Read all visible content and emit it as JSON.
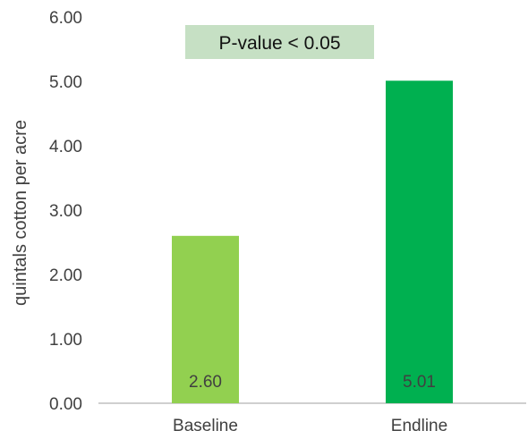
{
  "chart_data": {
    "type": "bar",
    "categories": [
      "Baseline",
      "Endline"
    ],
    "values": [
      2.6,
      5.01
    ],
    "value_labels": [
      "2.60",
      "5.01"
    ],
    "title": "",
    "xlabel": "",
    "ylabel": "quintals cotton per acre",
    "ylim": [
      0,
      6
    ],
    "y_ticks": [
      "0.00",
      "1.00",
      "2.00",
      "3.00",
      "4.00",
      "5.00",
      "6.00"
    ],
    "grid": false,
    "legend": "none",
    "bar_colors": [
      "#92d050",
      "#00b050"
    ],
    "annotation": {
      "text": "P-value < 0.05",
      "background": "#c6e0c4"
    }
  }
}
